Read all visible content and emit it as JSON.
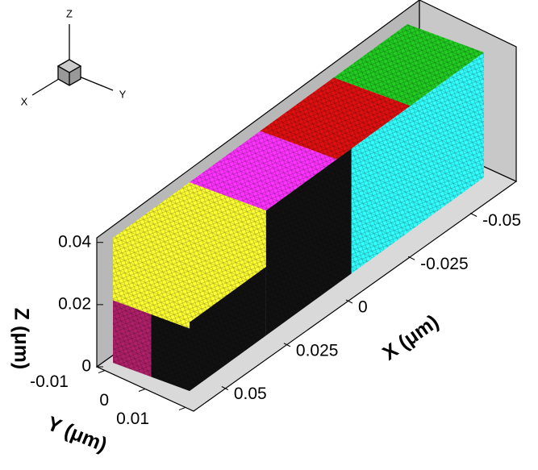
{
  "chart_data": {
    "type": "3d-mesh",
    "x_label": "X (μm)",
    "y_label": "Y (μm)",
    "z_label": "Z (μm)",
    "xlim": [
      -0.06,
      0.06
    ],
    "xticks": [
      -0.05,
      -0.025,
      0,
      0.025,
      0.05
    ],
    "ylim": [
      -0.012,
      0.012
    ],
    "yticks": [
      -0.01,
      0,
      0.01
    ],
    "zlim": [
      0,
      0.042
    ],
    "zticks": [
      0,
      0.02,
      0.04
    ],
    "block_colors": [
      "#ffff33",
      "#ff33ff",
      "#e01010",
      "#22cc22",
      "#33ffff",
      "#111111",
      "#b0206a"
    ],
    "orientation_axes": [
      "X",
      "Y",
      "Z"
    ]
  }
}
